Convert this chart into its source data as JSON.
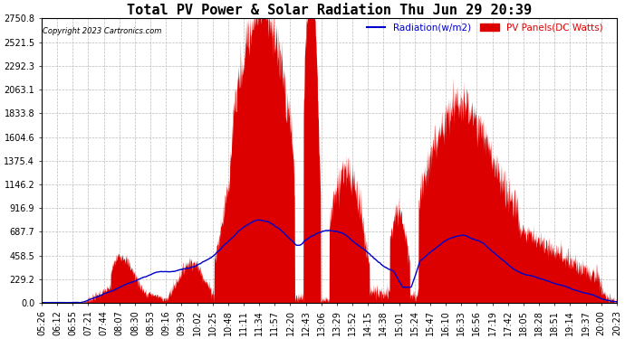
{
  "title": "Total PV Power & Solar Radiation Thu Jun 29 20:39",
  "copyright": "Copyright 2023 Cartronics.com",
  "legend_radiation": "Radiation(w/m2)",
  "legend_pv": "PV Panels(DC Watts)",
  "ymax": 2750.8,
  "yticks": [
    0.0,
    229.2,
    458.5,
    687.7,
    916.9,
    1146.2,
    1375.4,
    1604.6,
    1833.8,
    2063.1,
    2292.3,
    2521.5,
    2750.8
  ],
  "background_color": "#ffffff",
  "fill_color": "#dd0000",
  "line_color": "#0000cc",
  "grid_color": "#bbbbbb",
  "title_fontsize": 11,
  "tick_fontsize": 7,
  "xtick_labels": [
    "05:26",
    "06:12",
    "06:55",
    "07:21",
    "07:44",
    "08:07",
    "08:30",
    "08:53",
    "09:16",
    "09:39",
    "10:02",
    "10:25",
    "10:48",
    "11:11",
    "11:34",
    "11:57",
    "12:20",
    "12:43",
    "13:06",
    "13:29",
    "13:52",
    "14:15",
    "14:38",
    "15:01",
    "15:24",
    "15:47",
    "16:10",
    "16:33",
    "16:56",
    "17:19",
    "17:42",
    "18:05",
    "18:28",
    "18:51",
    "19:14",
    "19:37",
    "20:00",
    "20:23"
  ]
}
